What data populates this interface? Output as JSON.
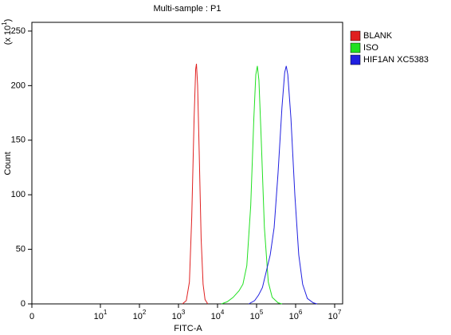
{
  "chart_data": {
    "type": "line",
    "title": "Multi-sample : P1",
    "x_label": "FITC-A",
    "y_label": "Count",
    "y_multiplier": {
      "prefix": "(x 10",
      "sup": "1",
      "suffix": ")"
    },
    "x_scale": "symlog",
    "x_linthresh": 10,
    "xlim": [
      0,
      16000000
    ],
    "ylim": [
      0,
      258
    ],
    "xticks": [
      {
        "value": 0,
        "label": "0"
      },
      {
        "value": 10,
        "label": "10",
        "sup": "1"
      },
      {
        "value": 100,
        "label": "10",
        "sup": "2"
      },
      {
        "value": 1000,
        "label": "10",
        "sup": "3"
      },
      {
        "value": 10000,
        "label": "10",
        "sup": "4"
      },
      {
        "value": 100000,
        "label": "10",
        "sup": "5"
      },
      {
        "value": 1000000,
        "label": "10",
        "sup": "6"
      },
      {
        "value": 10000000,
        "label": "10",
        "sup": "7"
      }
    ],
    "yticks": [
      0,
      50,
      100,
      150,
      200,
      250
    ],
    "legend": "right",
    "series": [
      {
        "name": "BLANK",
        "color": "#e02020",
        "x": [
          1259,
          1585,
          1905,
          2188,
          2512,
          2754,
          2884,
          3090,
          3388,
          3802,
          4266,
          4786,
          5623
        ],
        "values": [
          0,
          3,
          20,
          80,
          170,
          215,
          220,
          200,
          140,
          60,
          18,
          4,
          0
        ]
      },
      {
        "name": "ISO",
        "color": "#20e020",
        "x": [
          12589,
          17783,
          25119,
          35481,
          44668,
          56234,
          70795,
          85114,
          95499,
          104713,
          114815,
          131826,
          158489,
          199526,
          251189,
          354813,
          446684
        ],
        "values": [
          0,
          2,
          6,
          12,
          18,
          35,
          90,
          170,
          210,
          218,
          205,
          150,
          70,
          20,
          6,
          1,
          0
        ]
      },
      {
        "name": "HIF1AN XC5383",
        "color": "#2020e0",
        "x": [
          63096,
          89125,
          112202,
          141254,
          177828,
          223872,
          281838,
          354813,
          446684,
          524807,
          575440,
          630957,
          758578,
          954993,
          1202264,
          1513561,
          1995262,
          2818383,
          3548134
        ],
        "values": [
          0,
          3,
          8,
          15,
          30,
          45,
          70,
          120,
          180,
          212,
          218,
          210,
          170,
          100,
          45,
          18,
          5,
          1,
          0
        ]
      }
    ]
  }
}
